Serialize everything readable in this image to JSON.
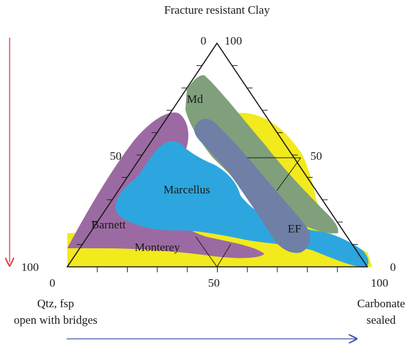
{
  "labels": {
    "top_apex": "Fracture resistant Clay",
    "left_apex_line1": "Qtz, fsp",
    "left_apex_line2": "open with bridges",
    "right_apex_line1": "Carbonate",
    "right_apex_line2": "sealed"
  },
  "ticks": {
    "top_zero": "0",
    "top_hundred": "100",
    "left_fifty": "50",
    "right_fifty": "50",
    "left_hundred": "100",
    "right_zero": "0",
    "bottom_zero": "0",
    "bottom_fifty": "50",
    "bottom_hundred": "100"
  },
  "regions": {
    "md": "Md",
    "marcellus": "Marcellus",
    "barnett": "Barnett",
    "ef": "EF",
    "monterey": "Monterey"
  },
  "colors": {
    "monterey_yellow": "#f2ea1c",
    "barnett_purple": "#9c6aa2",
    "md_green": "#7fa07b",
    "marcellus_blue": "#2da6df",
    "ef_slate": "#6f7fa6",
    "arrow_red": "#e0342f",
    "arrow_blue": "#3e4fa6",
    "outline": "#1a1a1a"
  }
}
